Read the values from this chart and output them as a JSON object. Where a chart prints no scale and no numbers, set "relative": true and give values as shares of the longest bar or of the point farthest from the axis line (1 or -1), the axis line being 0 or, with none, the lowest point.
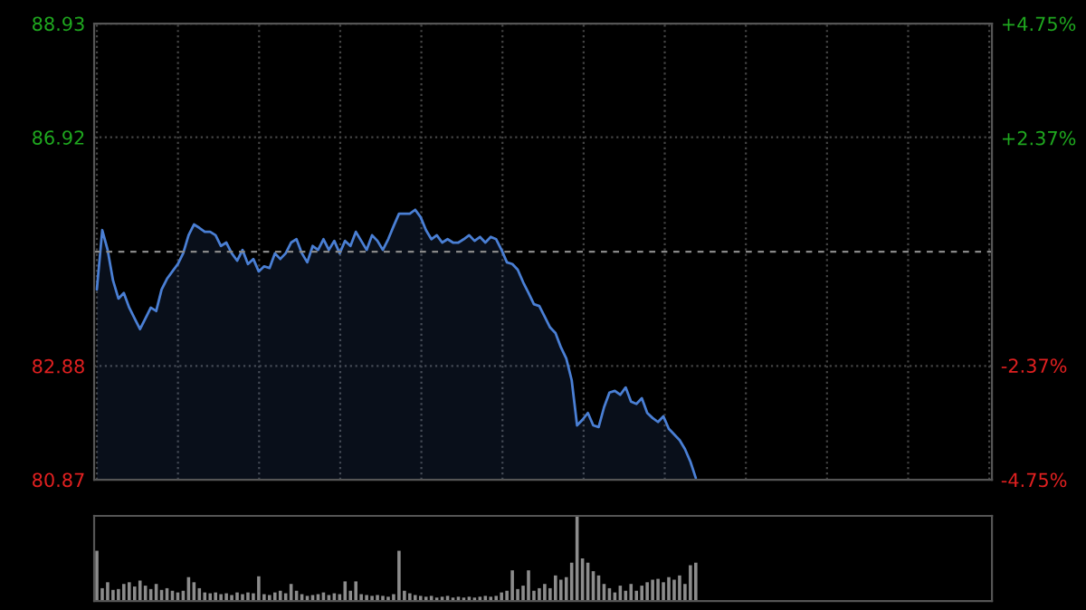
{
  "chart_data": [
    {
      "type": "area",
      "categories": [
        null,
        null,
        null,
        null,
        null,
        null,
        null,
        null,
        null,
        null,
        null,
        null,
        null,
        null,
        null,
        null,
        null,
        null,
        null,
        null,
        null,
        null,
        null,
        null,
        null,
        null,
        null,
        null,
        null,
        null,
        null,
        null,
        null,
        null,
        null,
        null,
        null,
        null,
        null,
        null,
        null,
        null,
        null,
        null,
        null,
        null,
        null,
        null,
        null,
        null,
        null,
        null,
        null,
        null,
        null,
        null,
        null,
        null,
        null,
        null,
        null,
        null,
        null,
        null,
        null,
        null,
        null,
        null,
        null,
        null,
        null,
        null,
        null,
        null,
        null,
        null,
        null,
        null,
        null,
        null,
        null,
        null,
        null,
        null,
        null,
        null,
        null,
        null,
        null,
        null,
        null,
        null,
        null,
        null,
        null,
        null,
        null,
        null,
        null,
        null,
        null,
        null,
        null,
        null,
        null,
        null,
        null,
        null,
        null,
        null,
        null,
        null
      ],
      "series": [
        {
          "color": "#4a7fd4",
          "values": [
            84.23,
            85.28,
            84.93,
            84.39,
            84.07,
            84.17,
            83.91,
            83.72,
            83.53,
            83.72,
            83.91,
            83.85,
            84.23,
            84.42,
            84.55,
            84.68,
            84.87,
            85.19,
            85.38,
            85.32,
            85.25,
            85.25,
            85.19,
            85.0,
            85.06,
            84.87,
            84.74,
            84.93,
            84.68,
            84.77,
            84.55,
            84.64,
            84.61,
            84.87,
            84.77,
            84.87,
            85.06,
            85.12,
            84.87,
            84.71,
            85.0,
            84.93,
            85.12,
            84.93,
            85.09,
            84.87,
            85.09,
            85.0,
            85.25,
            85.09,
            84.93,
            85.19,
            85.09,
            84.93,
            85.12,
            85.35,
            85.57,
            85.57,
            85.57,
            85.64,
            85.51,
            85.28,
            85.12,
            85.19,
            85.06,
            85.12,
            85.06,
            85.06,
            85.12,
            85.19,
            85.09,
            85.16,
            85.06,
            85.16,
            85.12,
            84.93,
            84.71,
            84.68,
            84.58,
            84.36,
            84.17,
            83.97,
            83.94,
            83.75,
            83.56,
            83.46,
            83.21,
            83.01,
            82.63,
            81.83,
            81.93,
            82.05,
            81.83,
            81.8,
            82.15,
            82.41,
            82.44,
            82.37,
            82.5,
            82.25,
            82.21,
            82.31,
            82.05,
            81.96,
            81.89,
            81.99,
            81.77,
            81.67,
            81.57,
            81.41,
            81.19,
            80.9
          ]
        }
      ],
      "ylim": [
        80.87,
        88.93
      ],
      "yticks": [
        80.87,
        82.88,
        86.92,
        88.93
      ],
      "y2lim": [
        -4.75,
        4.75
      ],
      "y2ticks": [
        {
          "value": -4.75,
          "label": "-4.75%"
        },
        {
          "value": -2.37,
          "label": "-2.37%"
        },
        {
          "value": 2.37,
          "label": "+2.37%"
        },
        {
          "value": 4.75,
          "label": "+4.75%"
        }
      ],
      "ref_lines": [
        {
          "axis": "y",
          "value": 84.9,
          "color": "#888888",
          "line_style": "dashed"
        }
      ],
      "grid": true,
      "tick_labels": "y"
    },
    {
      "type": "bar",
      "relative": true,
      "categories": [
        null,
        null,
        null,
        null,
        null,
        null,
        null,
        null,
        null,
        null,
        null,
        null,
        null,
        null,
        null,
        null,
        null,
        null,
        null,
        null,
        null,
        null,
        null,
        null,
        null,
        null,
        null,
        null,
        null,
        null,
        null,
        null,
        null,
        null,
        null,
        null,
        null,
        null,
        null,
        null,
        null,
        null,
        null,
        null,
        null,
        null,
        null,
        null,
        null,
        null,
        null,
        null,
        null,
        null,
        null,
        null,
        null,
        null,
        null,
        null,
        null,
        null,
        null,
        null,
        null,
        null,
        null,
        null,
        null,
        null,
        null,
        null,
        null,
        null,
        null,
        null,
        null,
        null,
        null,
        null,
        null,
        null,
        null,
        null,
        null,
        null,
        null,
        null,
        null,
        null,
        null,
        null,
        null,
        null,
        null,
        null,
        null,
        null,
        null,
        null,
        null,
        null,
        null,
        null,
        null,
        null,
        null,
        null,
        null,
        null,
        null,
        null
      ],
      "series": [
        {
          "color": "#8c8c8c",
          "values": [
            0.59,
            0.15,
            0.22,
            0.13,
            0.14,
            0.2,
            0.22,
            0.17,
            0.24,
            0.18,
            0.14,
            0.2,
            0.13,
            0.15,
            0.12,
            0.1,
            0.12,
            0.28,
            0.22,
            0.15,
            0.1,
            0.09,
            0.1,
            0.08,
            0.09,
            0.07,
            0.1,
            0.08,
            0.1,
            0.09,
            0.29,
            0.08,
            0.07,
            0.1,
            0.12,
            0.09,
            0.2,
            0.12,
            0.08,
            0.06,
            0.07,
            0.08,
            0.1,
            0.07,
            0.09,
            0.08,
            0.23,
            0.12,
            0.23,
            0.08,
            0.07,
            0.06,
            0.07,
            0.06,
            0.05,
            0.08,
            0.59,
            0.12,
            0.09,
            0.07,
            0.06,
            0.05,
            0.06,
            0.04,
            0.05,
            0.06,
            0.04,
            0.05,
            0.04,
            0.05,
            0.04,
            0.05,
            0.06,
            0.05,
            0.06,
            0.1,
            0.12,
            0.36,
            0.14,
            0.18,
            0.36,
            0.12,
            0.15,
            0.2,
            0.15,
            0.3,
            0.25,
            0.28,
            0.45,
            1.0,
            0.5,
            0.45,
            0.35,
            0.3,
            0.2,
            0.15,
            0.1,
            0.18,
            0.12,
            0.2,
            0.12,
            0.18,
            0.22,
            0.25,
            0.26,
            0.22,
            0.28,
            0.25,
            0.3,
            0.2,
            0.42,
            0.45
          ]
        }
      ],
      "tick_labels": false
    }
  ]
}
